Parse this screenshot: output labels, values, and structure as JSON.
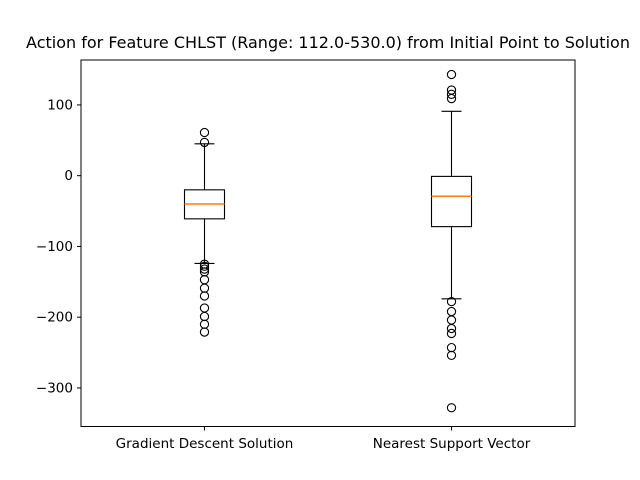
{
  "figure": {
    "background": "#ffffff"
  },
  "chart_data": {
    "type": "boxplot",
    "title": "Action for Feature CHLST (Range: 112.0-530.0) from Initial Point to Solution",
    "categories": [
      "Gradient Descent Solution",
      "Nearest Support Vector"
    ],
    "series": [
      {
        "label": "Gradient Descent Solution",
        "q1": -61,
        "median": -40,
        "q3": -20,
        "whisker_low": -124,
        "whisker_high": 45,
        "outliers": [
          61,
          47,
          -125,
          -128,
          -132,
          -136,
          -147,
          -159,
          -170,
          -187,
          -199,
          -210,
          -221
        ]
      },
      {
        "label": "Nearest Support Vector",
        "q1": -72,
        "median": -29,
        "q3": -1,
        "whisker_low": -174,
        "whisker_high": 91,
        "outliers": [
          143,
          121,
          115,
          109,
          -178,
          -192,
          -204,
          -216,
          -223,
          -243,
          -254,
          -328
        ]
      }
    ],
    "xlabel": "",
    "ylabel": "",
    "ylim": [
      -354.5,
      163.5
    ],
    "yticks": [
      100,
      0,
      -100,
      -200,
      -300
    ],
    "ytick_labels": [
      "100",
      "0",
      "−100",
      "−200",
      "−300"
    ],
    "grid": false,
    "colors": {
      "median": "#ff7f0e",
      "line": "#000000",
      "background": "#ffffff"
    }
  }
}
